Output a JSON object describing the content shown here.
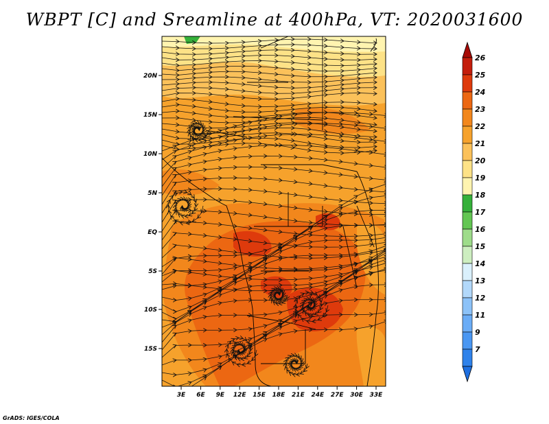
{
  "title": "WBPT [C] and Sreamline at 400hPa, VT: 2020031600",
  "footer": "GrADS: IGES/COLA",
  "map": {
    "variable": "WBPT [C]",
    "level": "400hPa",
    "valid_time": "2020031600",
    "lat_ticks": [
      "20N",
      "15N",
      "10N",
      "5N",
      "EQ",
      "5S",
      "10S",
      "15S"
    ],
    "lon_ticks": [
      "3E",
      "6E",
      "9E",
      "12E",
      "15E",
      "18E",
      "21E",
      "24E",
      "27E",
      "30E",
      "33E"
    ]
  },
  "colorbar": {
    "labels": [
      "7",
      "9",
      "11",
      "12",
      "13",
      "14",
      "15",
      "16",
      "17",
      "18",
      "19",
      "20",
      "21",
      "22",
      "23",
      "24",
      "25",
      "26"
    ],
    "colors": [
      "#1e6fe0",
      "#2f82ea",
      "#4a97f2",
      "#6aacf6",
      "#8cc2f8",
      "#b2d8fa",
      "#daf0fc",
      "#cdeec0",
      "#9edc8a",
      "#63c653",
      "#35b03a",
      "#fff4b0",
      "#fde287",
      "#fbc15a",
      "#f6a22c",
      "#f2871c",
      "#ec6712",
      "#de3a0c",
      "#c41e0c",
      "#a70a06"
    ]
  }
}
